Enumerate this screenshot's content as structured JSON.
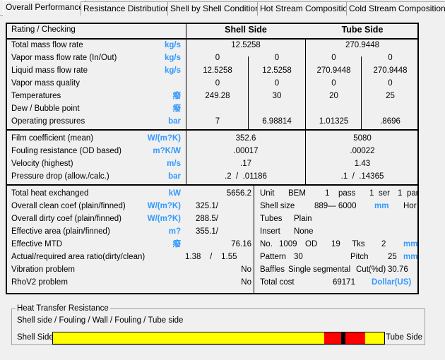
{
  "tabs": [
    "Overall Performance",
    "Resistance Distribution",
    "Shell by Shell Conditions",
    "Hot Stream Composition",
    "Cold Stream Composition"
  ],
  "header": {
    "title": "Rating / Checking",
    "shell": "Shell Side",
    "tube": "Tube Side"
  },
  "section1": [
    {
      "label": "Total mass flow rate",
      "unit": "kg/s",
      "shell": "12.5258",
      "tube": "270.9448"
    },
    {
      "label": "Vapor mass flow rate  (In/Out)",
      "unit": "kg/s",
      "v": [
        "0",
        "0",
        "0",
        "0"
      ]
    },
    {
      "label": "Liquid mass flow rate",
      "unit": "kg/s",
      "v": [
        "12.5258",
        "12.5258",
        "270.9448",
        "270.9448"
      ]
    },
    {
      "label": "Vapor mass quality",
      "unit": "",
      "v": [
        "0",
        "0",
        "0",
        "0"
      ]
    },
    {
      "label": "Temperatures",
      "unit": "癈",
      "v": [
        "249.28",
        "30",
        "20",
        "25"
      ]
    },
    {
      "label": "Dew / Bubble point",
      "unit": "癈",
      "v": [
        "",
        "",
        "",
        ""
      ]
    },
    {
      "label": "Operating pressures",
      "unit": "bar",
      "v": [
        "7",
        "6.98814",
        "1.01325",
        ".8696"
      ]
    }
  ],
  "section2": [
    {
      "label": "Film coefficient (mean)",
      "unit": "W/(m?K)",
      "shell": "352.6",
      "tube": "5080"
    },
    {
      "label": "Fouling resistance (OD based)",
      "unit": "m?K/W",
      "shell": ".00017",
      "tube": ".00022"
    },
    {
      "label": "Velocity (highest)",
      "unit": "m/s",
      "shell": ".17",
      "tube": "1.43"
    },
    {
      "label": "Pressure drop (allow./calc.)",
      "unit": "bar",
      "shell": ".2  /  .01186",
      "tube": ".1  /  .14365"
    }
  ],
  "section3": [
    {
      "label": "Total heat exchanged",
      "unit": "kW",
      "val": "",
      "right": "5656.2"
    },
    {
      "label": "Overall clean coef (plain/finned)",
      "unit": "W/(m?K)",
      "val": "325.1/",
      "right": ""
    },
    {
      "label": "Overall dirty coef (plain/finned)",
      "unit": "W/(m?K)",
      "val": "288.5/",
      "right": ""
    },
    {
      "label": "Effective area (plain/finned)",
      "unit": "m?",
      "val": "355.1/",
      "right": ""
    },
    {
      "label": "Effective MTD",
      "unit": "癈",
      "val": "",
      "right": "76.16"
    },
    {
      "label": "Actual/required area ratio(dirty/clean)",
      "unit": "",
      "val": "1.38    /    1.55",
      "right": ""
    },
    {
      "label": "Vibration problem",
      "unit": "",
      "val": "",
      "right": "No"
    },
    {
      "label": "RhoV2 problem",
      "unit": "",
      "val": "",
      "right": "No"
    }
  ],
  "geometry": {
    "unit_label": "Unit",
    "unit_val": "BEM",
    "pass_n": "1",
    "pass": "pass",
    "ser_n": "1",
    "ser": "ser",
    "par_n": "1",
    "par": "par",
    "shell_size_label": "Shell size",
    "shell_size": "889—  6000",
    "shell_unit": "mm",
    "orient": "Hor",
    "tubes_label": "Tubes",
    "tubes": "Plain",
    "insert_label": "Insert",
    "insert": "None",
    "no_label": "No.",
    "no": "1009",
    "od_label": "OD",
    "od": "19",
    "tks_label": "Tks",
    "tks": "2",
    "tube_unit": "mm",
    "pattern_label": "Pattern",
    "pattern": "30",
    "pitch_label": "Pitch",
    "pitch": "25",
    "pitch_unit": "mm",
    "baffles_label": "Baffles",
    "baffles": "Single segmental",
    "cut_label": "Cut(%d)",
    "cut": "30.76",
    "cost_label": "Total cost",
    "cost": "69171",
    "cost_unit": "Dollar(US)"
  },
  "resistance": {
    "title": "Heat Transfer Resistance",
    "legend": "Shell side / Fouling / Wall / Fouling / Tube side",
    "left_label": "Shell Side",
    "right_label": "Tube Side",
    "segments": [
      {
        "name": "shell-side",
        "percent": 81.9,
        "color": "#ffff00"
      },
      {
        "name": "shell-fouling",
        "percent": 5.1,
        "color": "#ff0000"
      },
      {
        "name": "wall",
        "percent": 1.3,
        "color": "#000000"
      },
      {
        "name": "tube-fouling",
        "percent": 6.0,
        "color": "#ff0000"
      },
      {
        "name": "tube-side",
        "percent": 5.7,
        "color": "#ffff00"
      }
    ]
  },
  "colors": {
    "unit": "#3399ff"
  }
}
